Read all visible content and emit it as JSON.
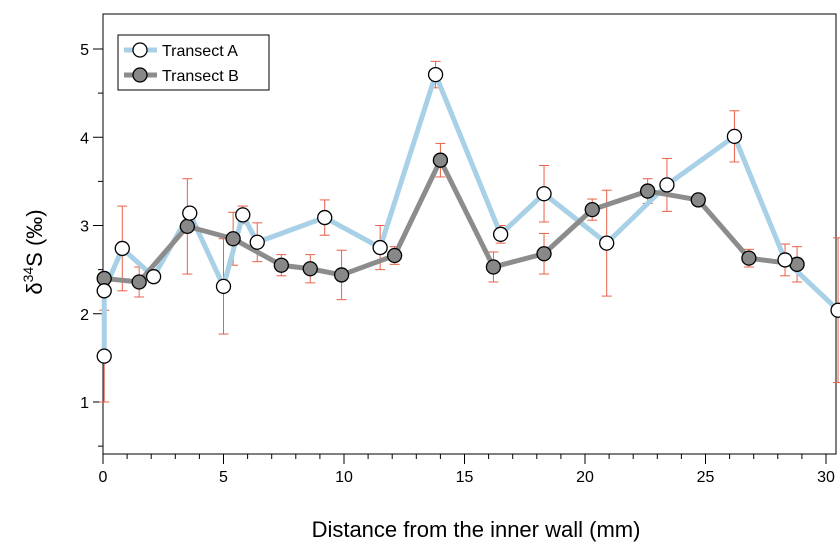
{
  "chart_data": {
    "type": "line",
    "xlabel": "Distance from the inner wall (mm)",
    "ylabel_main": "δ",
    "ylabel_sup": "34",
    "ylabel_rest": "S (‰)",
    "xlim": [
      0,
      30.5
    ],
    "ylim": [
      0.4,
      5.4
    ],
    "xticks": [
      0,
      5,
      10,
      15,
      20,
      25,
      30
    ],
    "xtick_labels": [
      "0",
      "5",
      "10",
      "15",
      "20",
      "25",
      "30"
    ],
    "yticks": [
      1,
      2,
      3,
      4,
      5
    ],
    "ytick_labels": [
      "1",
      "2",
      "3",
      "4",
      "5"
    ],
    "grid": false,
    "legend_position": "top-left",
    "colors": {
      "line_a": "#a8d0e6",
      "line_b": "#8c8c8c",
      "marker_b": "#888888",
      "error_bar": "#e8604a"
    },
    "series": [
      {
        "name": "Transect A",
        "marker": "open-circle",
        "x": [
          0.05,
          0.05,
          0.8,
          2.1,
          3.6,
          5.0,
          5.8,
          6.4,
          9.2,
          11.5,
          13.8,
          16.5,
          18.3,
          20.9,
          23.4,
          26.2,
          28.3,
          30.5
        ],
        "y": [
          1.52,
          2.26,
          2.74,
          2.42,
          3.14,
          2.31,
          3.12,
          2.81,
          3.09,
          2.75,
          4.71,
          2.9,
          3.36,
          2.8,
          3.46,
          4.01,
          2.61,
          2.04
        ],
        "err": [
          0.52,
          0.0,
          0.48,
          0.0,
          0.0,
          0.54,
          0.1,
          0.22,
          0.2,
          0.25,
          0.15,
          0.1,
          0.32,
          0.6,
          0.3,
          0.29,
          0.18,
          0.82
        ]
      },
      {
        "name": "Transect B",
        "marker": "filled-circle",
        "x": [
          0.05,
          1.5,
          3.5,
          5.4,
          7.4,
          8.6,
          9.9,
          12.1,
          14.0,
          16.2,
          18.3,
          20.3,
          22.6,
          24.7,
          26.8,
          28.8
        ],
        "y": [
          2.4,
          2.36,
          2.99,
          2.85,
          2.55,
          2.51,
          2.44,
          2.66,
          3.74,
          2.53,
          2.68,
          3.18,
          3.39,
          3.29,
          2.63,
          2.56
        ],
        "err": [
          0.0,
          0.17,
          0.54,
          0.3,
          0.12,
          0.16,
          0.28,
          0.1,
          0.19,
          0.17,
          0.23,
          0.12,
          0.14,
          0.0,
          0.1,
          0.2
        ]
      }
    ]
  }
}
